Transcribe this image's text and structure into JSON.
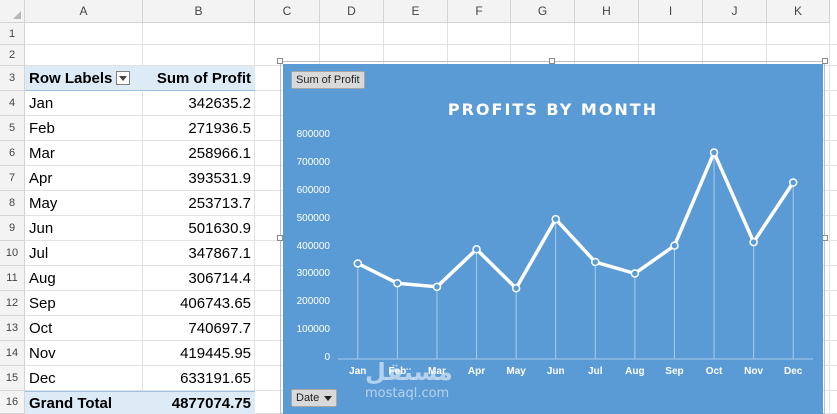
{
  "columns": [
    "A",
    "B",
    "C",
    "D",
    "E",
    "F",
    "G",
    "H",
    "I",
    "J",
    "K"
  ],
  "rows": [
    "1",
    "2",
    "3",
    "4",
    "5",
    "6",
    "7",
    "8",
    "9",
    "10",
    "11",
    "12",
    "13",
    "14",
    "15",
    "16"
  ],
  "pivot": {
    "header_labels": "Row Labels",
    "header_values": "Sum of Profit",
    "rows": [
      {
        "label": "Jan",
        "value": "342635.2"
      },
      {
        "label": "Feb",
        "value": "271936.5"
      },
      {
        "label": "Mar",
        "value": "258966.1"
      },
      {
        "label": "Apr",
        "value": "393531.9"
      },
      {
        "label": "May",
        "value": "253713.7"
      },
      {
        "label": "Jun",
        "value": "501630.9"
      },
      {
        "label": "Jul",
        "value": "347867.1"
      },
      {
        "label": "Aug",
        "value": "306714.4"
      },
      {
        "label": "Sep",
        "value": "406743.65"
      },
      {
        "label": "Oct",
        "value": "740697.7"
      },
      {
        "label": "Nov",
        "value": "419445.95"
      },
      {
        "label": "Dec",
        "value": "633191.65"
      }
    ],
    "total_label": "Grand Total",
    "total_value": "4877074.75"
  },
  "chart_buttons": {
    "value_field": "Sum of Profit",
    "axis_field": "Date"
  },
  "watermark": {
    "arabic": "مستقل",
    "latin": "mostaql.com"
  },
  "chart_data": {
    "type": "line",
    "title": "PROFITS BY MONTH",
    "categories": [
      "Jan",
      "Feb",
      "Mar",
      "Apr",
      "May",
      "Jun",
      "Jul",
      "Aug",
      "Sep",
      "Oct",
      "Nov",
      "Dec"
    ],
    "series": [
      {
        "values": [
          342635.2,
          271936.5,
          258966.1,
          393531.9,
          253713.7,
          501630.9,
          347867.1,
          306714.4,
          406743.65,
          740697.7,
          419445.95,
          633191.65
        ]
      }
    ],
    "ylim": [
      0,
      800000
    ],
    "yticks": [
      "0",
      "100000",
      "200000",
      "300000",
      "400000",
      "500000",
      "600000",
      "700000",
      "800000"
    ],
    "grid": false,
    "colors": {
      "background": "#5b9bd5",
      "line": "#ffffff",
      "drop_lines": "#a9cbe9"
    }
  }
}
